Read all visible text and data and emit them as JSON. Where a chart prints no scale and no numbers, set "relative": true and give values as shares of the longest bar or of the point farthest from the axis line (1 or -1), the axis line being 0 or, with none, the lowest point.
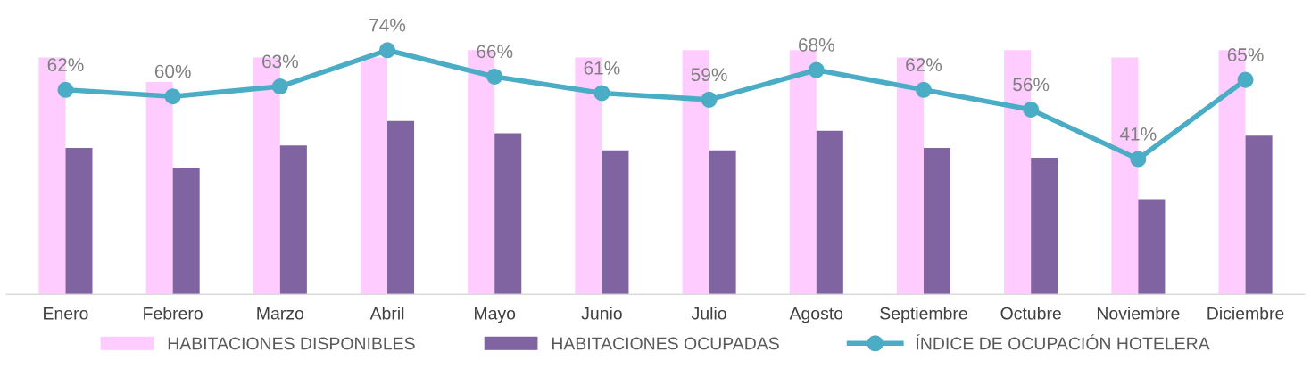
{
  "chart_data": [
    {
      "type": "bar",
      "relative": true,
      "categories": [
        "Enero",
        "Febrero",
        "Marzo",
        "Abril",
        "Mayo",
        "Junio",
        "Julio",
        "Agosto",
        "Septiembre",
        "Octubre",
        "Noviembre",
        "Diciembre"
      ],
      "series": [
        {
          "name": "HABITACIONES DISPONIBLES",
          "color": "#ffccff",
          "values": [
            0.97,
            0.87,
            0.97,
            0.97,
            1.0,
            0.97,
            1.0,
            1.0,
            0.97,
            1.0,
            0.97,
            1.0
          ]
        },
        {
          "name": "HABITACIONES OCUPADAS",
          "color": "#8064a2",
          "values": [
            0.6,
            0.52,
            0.61,
            0.71,
            0.66,
            0.59,
            0.59,
            0.67,
            0.6,
            0.56,
            0.39,
            0.65
          ]
        }
      ],
      "grid": false,
      "legend": "bottom"
    },
    {
      "type": "line",
      "marker": "circle",
      "data_labels": true,
      "tick_labels": false,
      "categories": [
        null,
        null,
        null,
        null,
        null,
        null,
        null,
        null,
        null,
        null,
        null,
        null
      ],
      "series": [
        {
          "name": "ÍNDICE DE OCUPACIÓN HOTELERA",
          "color": "#4bacc6",
          "value_labels": [
            "62%",
            "60%",
            "63%",
            "74%",
            "66%",
            "61%",
            "59%",
            "68%",
            "62%",
            "56%",
            "41%",
            "65%"
          ],
          "values": [
            62,
            60,
            63,
            74,
            66,
            61,
            59,
            68,
            62,
            56,
            41,
            65
          ]
        }
      ],
      "grid": false,
      "legend": "bottom"
    }
  ]
}
